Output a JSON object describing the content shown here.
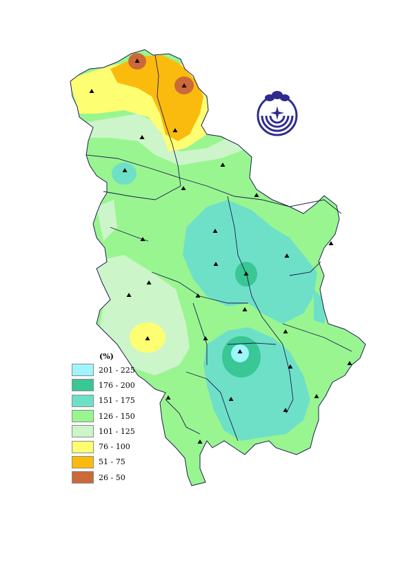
{
  "legend": {
    "title": "(%)",
    "items": [
      {
        "label": "201 - 225",
        "color": "#9ff5fb"
      },
      {
        "label": "176 - 200",
        "color": "#38c795"
      },
      {
        "label": "151 - 175",
        "color": "#6fe0c8"
      },
      {
        "label": "126 - 150",
        "color": "#99f590"
      },
      {
        "label": "101 - 125",
        "color": "#ccf5c9"
      },
      {
        "label": "76 - 100",
        "color": "#fefe73"
      },
      {
        "label": "51 - 75",
        "color": "#fbbb0e"
      },
      {
        "label": "26 - 50",
        "color": "#cb6939"
      }
    ]
  },
  "map": {
    "region_colors": {
      "zone_201_225": "#9ff5fb",
      "zone_176_200": "#38c795",
      "zone_151_175": "#6fe0c8",
      "zone_126_150": "#99f590",
      "zone_101_125": "#ccf5c9",
      "zone_76_100": "#fefe73",
      "zone_51_75": "#fbbb0e",
      "zone_26_50": "#cb6939"
    },
    "border_color": "#1a1a4d",
    "river_color": "#1a1a4d",
    "station_marker": "triangle",
    "logo_color": "#2e2a8e"
  }
}
